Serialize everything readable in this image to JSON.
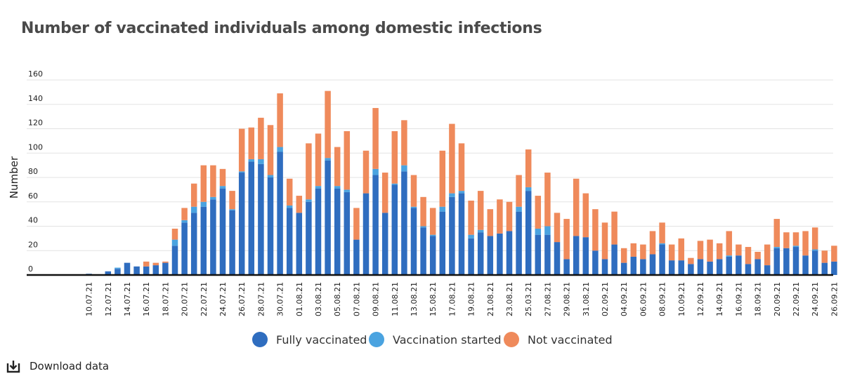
{
  "chart_data": {
    "type": "bar",
    "stacked": true,
    "title": "Number of vaccinated individuals among domestic infections",
    "ylabel": "Number",
    "xlabel": "",
    "ylim": [
      0,
      160
    ],
    "yticks": [
      0,
      20,
      40,
      60,
      80,
      100,
      120,
      140,
      160
    ],
    "grid": true,
    "legend_position": "bottom",
    "categories": [
      "09.07.21",
      "10.07.21",
      "11.07.21",
      "12.07.21",
      "13.07.21",
      "14.07.21",
      "15.07.21",
      "16.07.21",
      "17.07.21",
      "18.07.21",
      "19.07.21",
      "20.07.21",
      "21.07.21",
      "22.07.21",
      "23.07.21",
      "24.07.21",
      "25.07.21",
      "26.07.21",
      "27.07.21",
      "28.07.21",
      "29.07.21",
      "30.07.21",
      "31.07.21",
      "01.08.21",
      "02.08.21",
      "03.08.21",
      "04.08.21",
      "05.08.21",
      "06.08.21",
      "07.08.21",
      "08.08.21",
      "09.08.21",
      "10.08.21",
      "11.08.21",
      "12.08.21",
      "13.08.21",
      "14.08.21",
      "15.08.21",
      "16.08.21",
      "17.08.21",
      "18.08.21",
      "19.08.21",
      "20.08.21",
      "21.08.21",
      "22.08.21",
      "23.08.21",
      "24.08.21",
      "25.03.21",
      "26.08.21",
      "27.08.21",
      "28.08.21",
      "29.08.21",
      "30.08.21",
      "31.08.21",
      "01.09.21",
      "02.09.21",
      "03.09.21",
      "04.09.21",
      "05.09.21",
      "06.09.21",
      "07.09.21",
      "08.09.21",
      "09.09.21",
      "10.09.21",
      "11.09.21",
      "12.09.21",
      "13.09.21",
      "14.09.21",
      "15.09.21",
      "16.09.21",
      "17.09.21",
      "18.09.21",
      "19.09.21",
      "20.09.21",
      "21.09.21",
      "22.09.21",
      "23.09.21",
      "24.09.21",
      "25.09.21",
      "26.09.21"
    ],
    "tick_labels": [
      "10.07.21",
      "12.07.21",
      "14.07.21",
      "16.07.21",
      "18.07.21",
      "20.07.21",
      "22.07.21",
      "24.07.21",
      "26.07.21",
      "28.07.21",
      "30.07.21",
      "01.08.21",
      "03.08.21",
      "05.08.21",
      "07.08.21",
      "09.08.21",
      "11.08.21",
      "13.08.21",
      "15.08.21",
      "17.08.21",
      "19.08.21",
      "21.08.21",
      "23.08.21",
      "25.03.21",
      "27.08.21",
      "29.08.21",
      "31.08.21",
      "02.09.21",
      "04.09.21",
      "06.09.21",
      "08.09.21",
      "10.09.21",
      "12.09.21",
      "14.09.21",
      "16.09.21",
      "18.09.21",
      "20.09.21",
      "22.09.21",
      "24.09.21",
      "26.09.21"
    ],
    "series": [
      {
        "name": "Fully vaccinated",
        "color": "#2f6dbf",
        "values": [
          0,
          1,
          0,
          3,
          5,
          10,
          7,
          7,
          8,
          10,
          24,
          43,
          51,
          56,
          62,
          71,
          53,
          84,
          93,
          91,
          80,
          101,
          55,
          51,
          60,
          71,
          94,
          71,
          68,
          29,
          67,
          82,
          51,
          74,
          85,
          55,
          39,
          32,
          52,
          64,
          67,
          30,
          35,
          32,
          34,
          36,
          52,
          69,
          33,
          33,
          27,
          13,
          32,
          31,
          20,
          13,
          25,
          10,
          15,
          13,
          17,
          25,
          12,
          12,
          9,
          13,
          11,
          13,
          15,
          16,
          9,
          13,
          8,
          22,
          22,
          23,
          16,
          20,
          10,
          11
        ]
      },
      {
        "name": "Vaccination started",
        "color": "#4aa3e0",
        "values": [
          0,
          0,
          0,
          0,
          1,
          0,
          0,
          0,
          0,
          0,
          5,
          2,
          5,
          4,
          2,
          2,
          1,
          1,
          2,
          4,
          2,
          4,
          2,
          0,
          2,
          2,
          2,
          2,
          2,
          0,
          0,
          5,
          0,
          1,
          5,
          1,
          1,
          1,
          4,
          3,
          2,
          3,
          2,
          0,
          0,
          0,
          4,
          3,
          5,
          7,
          0,
          0,
          0,
          0,
          0,
          0,
          0,
          0,
          0,
          0,
          0,
          1,
          0,
          0,
          0,
          0,
          0,
          0,
          1,
          0,
          0,
          0,
          0,
          1,
          0,
          1,
          0,
          1,
          0,
          0
        ]
      },
      {
        "name": "Not vaccinated",
        "color": "#ef8a5b",
        "values": [
          0,
          0,
          0,
          0,
          0,
          0,
          0,
          4,
          2,
          1,
          9,
          10,
          19,
          30,
          26,
          14,
          15,
          35,
          26,
          34,
          41,
          44,
          22,
          14,
          46,
          43,
          55,
          32,
          48,
          26,
          35,
          50,
          33,
          43,
          37,
          26,
          24,
          22,
          46,
          57,
          39,
          28,
          32,
          22,
          28,
          24,
          26,
          31,
          27,
          44,
          24,
          33,
          47,
          36,
          34,
          30,
          27,
          12,
          11,
          12,
          19,
          17,
          13,
          18,
          5,
          15,
          18,
          13,
          20,
          9,
          14,
          6,
          17,
          23,
          13,
          11,
          20,
          18,
          10,
          13
        ]
      }
    ]
  },
  "download": {
    "label": "Download data",
    "icon": "download-icon"
  }
}
